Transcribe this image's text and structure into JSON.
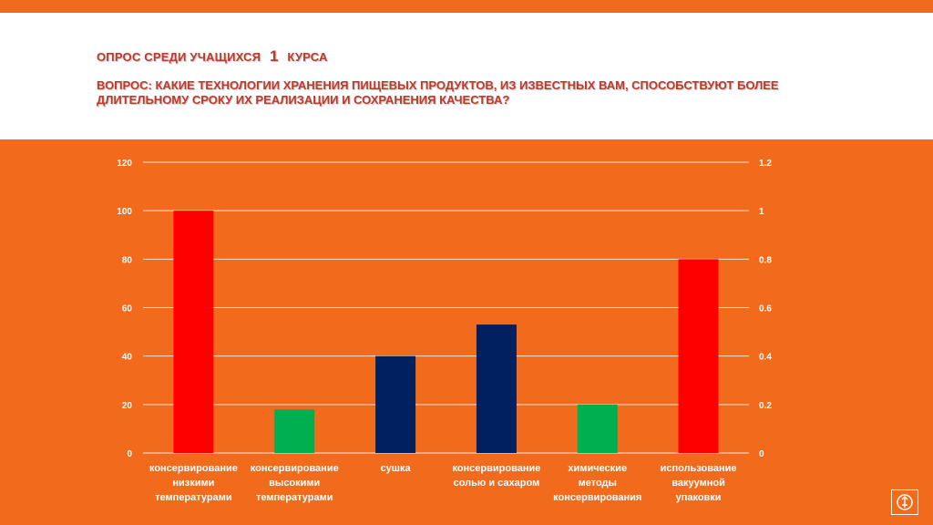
{
  "header": {
    "title_prefix": "ОПРОС СРЕДИ УЧАЩИХСЯ",
    "title_number": "1",
    "title_suffix": "КУРСА",
    "question": "ВОПРОС:  КАКИЕ  ТЕХНОЛОГИИ ХРАНЕНИЯ ПИЩЕВЫХ ПРОДУКТОВ, ИЗ ИЗВЕСТНЫХ ВАМ, СПОСОБСТВУЮТ БОЛЕЕ ДЛИТЕЛЬНОМУ СРОКУ ИХ РЕАЛИЗАЦИИ И СОХРАНЕНИЯ КАЧЕСТВА?"
  },
  "colors": {
    "background": "#F26A1B",
    "red": "#FF0000",
    "green": "#00B050",
    "navy": "#002060"
  },
  "chart_data": {
    "type": "bar",
    "categories": [
      [
        "консервирование",
        "низкими",
        "температурами"
      ],
      [
        "консервирование",
        "высокими",
        "температурами"
      ],
      [
        "сушка"
      ],
      [
        "консервирование",
        "солью и сахаром"
      ],
      [
        "химические",
        "методы",
        "консервирования"
      ],
      [
        "использование",
        "вакуумной",
        "упаковки"
      ]
    ],
    "values": [
      100,
      18,
      40,
      53,
      20,
      80
    ],
    "bar_colors": [
      "#FF0000",
      "#00B050",
      "#002060",
      "#002060",
      "#00B050",
      "#FF0000"
    ],
    "ylim": [
      0,
      120
    ],
    "yticks": [
      "0",
      "20",
      "40",
      "60",
      "80",
      "100",
      "120"
    ],
    "y2lim": [
      0,
      1.2
    ],
    "y2ticks": [
      "0",
      "0.2",
      "0.4",
      "0.6",
      "0.8",
      "1",
      "1.2"
    ],
    "grid": true,
    "title": "",
    "xlabel": "",
    "ylabel": ""
  },
  "logo": {
    "icon": "emblem-icon"
  }
}
